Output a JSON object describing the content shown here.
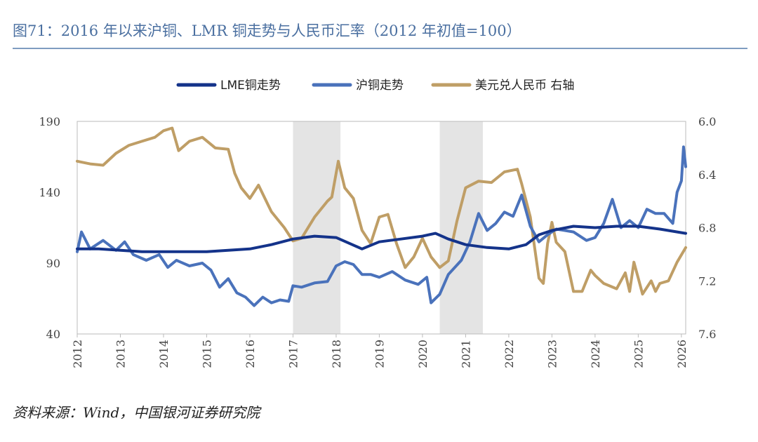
{
  "title": "图71：2016 年以来沪铜、LMR 铜走势与人民币汇率（2012 年初值=100）",
  "source": "资料来源：Wind，中国银河证券研究院",
  "colors": {
    "lme": "#14338a",
    "shfe": "#4a72bb",
    "usdcny": "#bf9e66",
    "band": "#e4e4e4",
    "axis": "#bbbbbb"
  },
  "chart_data": {
    "type": "line",
    "title": "图71：2016 年以来沪铜、LMR 铜走势与人民币汇率（2012 年初值=100）",
    "x_ticks": [
      "2012",
      "2013",
      "2014",
      "2015",
      "2016",
      "2017",
      "2018",
      "2019",
      "2020",
      "2021",
      "2022",
      "2023",
      "2024",
      "2025",
      "2026"
    ],
    "xlim": [
      2012,
      2026.1
    ],
    "y_left": {
      "ylim": [
        40,
        190
      ],
      "ticks": [
        "190",
        "140",
        "90",
        "40"
      ]
    },
    "y_right": {
      "ylim": [
        6.0,
        7.6
      ],
      "inverted": true,
      "ticks": [
        "6.0",
        "6.4",
        "6.8",
        "7.2",
        "7.6"
      ]
    },
    "shaded_periods": [
      [
        2017.0,
        2018.1
      ],
      [
        2020.4,
        2021.4
      ]
    ],
    "legend": [
      "LME铜走势",
      "沪铜走势",
      "美元兑人民币 右轴"
    ],
    "series": [
      {
        "name": "LME铜走势",
        "axis": "left",
        "x": [
          2012,
          2012.5,
          2013,
          2013.5,
          2014,
          2014.5,
          2015,
          2015.5,
          2016,
          2016.5,
          2017,
          2017.5,
          2018,
          2018.3,
          2018.6,
          2019,
          2019.5,
          2020,
          2020.3,
          2020.6,
          2021,
          2021.5,
          2022,
          2022.4,
          2022.7,
          2023,
          2023.5,
          2024,
          2024.5,
          2025,
          2025.5,
          2026.1
        ],
        "values": [
          100,
          100,
          99,
          98,
          98,
          98,
          98,
          99,
          100,
          103,
          107,
          109,
          108,
          104,
          100,
          105,
          107,
          109,
          111,
          107,
          103,
          101,
          100,
          103,
          110,
          113,
          116,
          115,
          116,
          116,
          114,
          111
        ]
      },
      {
        "name": "沪铜走势",
        "axis": "left",
        "x": [
          2012,
          2012.1,
          2012.3,
          2012.6,
          2012.9,
          2013.1,
          2013.3,
          2013.6,
          2013.9,
          2014.1,
          2014.3,
          2014.6,
          2014.9,
          2015.1,
          2015.3,
          2015.5,
          2015.7,
          2015.9,
          2016.1,
          2016.3,
          2016.5,
          2016.7,
          2016.9,
          2017,
          2017.2,
          2017.5,
          2017.8,
          2018,
          2018.2,
          2018.4,
          2018.6,
          2018.8,
          2019,
          2019.3,
          2019.6,
          2019.9,
          2020.1,
          2020.2,
          2020.4,
          2020.6,
          2020.9,
          2021.1,
          2021.3,
          2021.5,
          2021.7,
          2021.9,
          2022.1,
          2022.3,
          2022.5,
          2022.7,
          2022.9,
          2023.1,
          2023.3,
          2023.5,
          2023.8,
          2024,
          2024.2,
          2024.4,
          2024.6,
          2024.8,
          2025,
          2025.2,
          2025.4,
          2025.6,
          2025.8,
          2025.9,
          2026,
          2026.05,
          2026.1
        ],
        "values": [
          98,
          112,
          100,
          106,
          99,
          105,
          96,
          92,
          96,
          87,
          92,
          88,
          90,
          85,
          73,
          79,
          69,
          66,
          60,
          66,
          62,
          64,
          63,
          74,
          73,
          76,
          77,
          88,
          91,
          89,
          82,
          82,
          80,
          84,
          78,
          75,
          80,
          62,
          68,
          82,
          92,
          105,
          125,
          113,
          118,
          126,
          123,
          138,
          116,
          105,
          110,
          114,
          113,
          112,
          106,
          108,
          118,
          135,
          115,
          120,
          115,
          128,
          125,
          125,
          118,
          140,
          148,
          172,
          158
        ]
      },
      {
        "name": "美元兑人民币 右轴",
        "axis": "right",
        "x": [
          2012,
          2012.3,
          2012.6,
          2012.9,
          2013.2,
          2013.5,
          2013.8,
          2014,
          2014.2,
          2014.35,
          2014.6,
          2014.9,
          2015.2,
          2015.5,
          2015.65,
          2015.8,
          2016,
          2016.2,
          2016.5,
          2016.8,
          2017,
          2017.2,
          2017.5,
          2017.8,
          2017.9,
          2018.05,
          2018.2,
          2018.4,
          2018.6,
          2018.8,
          2019,
          2019.2,
          2019.4,
          2019.6,
          2019.8,
          2020,
          2020.2,
          2020.4,
          2020.6,
          2020.8,
          2021,
          2021.3,
          2021.6,
          2021.9,
          2022.2,
          2022.3,
          2022.5,
          2022.7,
          2022.8,
          2022.9,
          2023,
          2023.1,
          2023.3,
          2023.5,
          2023.7,
          2023.9,
          2024,
          2024.2,
          2024.5,
          2024.7,
          2024.8,
          2024.9,
          2025,
          2025.1,
          2025.3,
          2025.4,
          2025.5,
          2025.7,
          2025.9,
          2026.1
        ],
        "values": [
          6.3,
          6.32,
          6.33,
          6.24,
          6.18,
          6.15,
          6.12,
          6.07,
          6.05,
          6.22,
          6.15,
          6.12,
          6.2,
          6.21,
          6.39,
          6.5,
          6.58,
          6.48,
          6.68,
          6.8,
          6.9,
          6.88,
          6.72,
          6.6,
          6.57,
          6.3,
          6.5,
          6.58,
          6.82,
          6.92,
          6.72,
          6.7,
          6.92,
          7.1,
          7.02,
          6.88,
          7.02,
          7.1,
          7.05,
          6.75,
          6.5,
          6.45,
          6.46,
          6.38,
          6.36,
          6.47,
          6.72,
          7.18,
          7.22,
          6.92,
          6.76,
          6.91,
          6.98,
          7.28,
          7.28,
          7.12,
          7.16,
          7.22,
          7.26,
          7.14,
          7.28,
          7.06,
          7.18,
          7.3,
          7.2,
          7.28,
          7.22,
          7.2,
          7.06,
          6.95
        ]
      }
    ]
  }
}
